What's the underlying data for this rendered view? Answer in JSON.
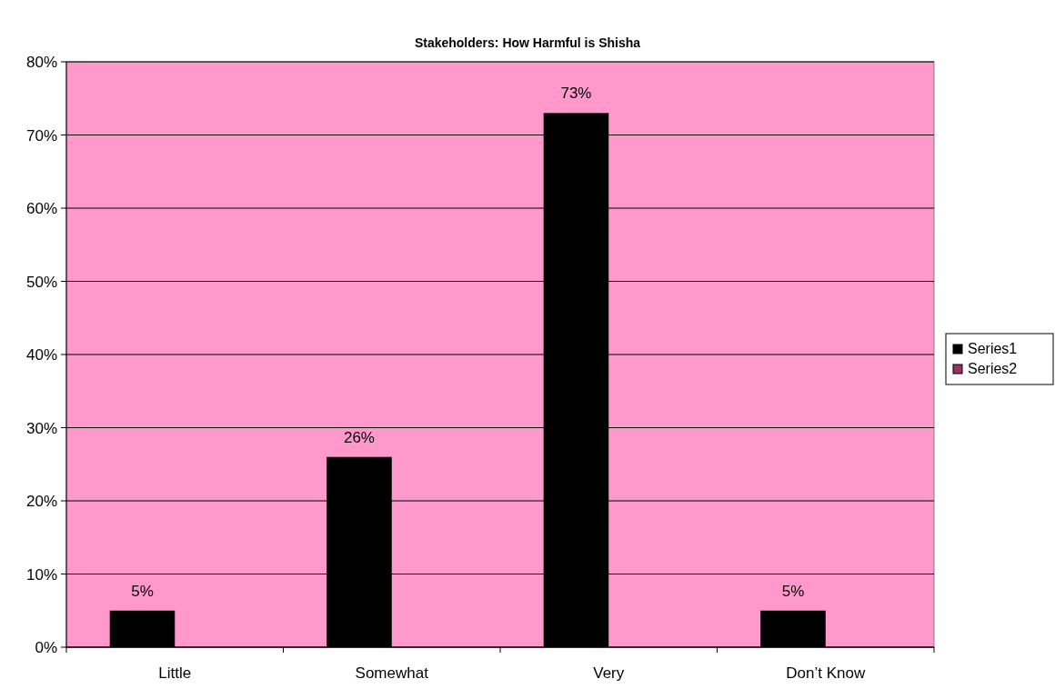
{
  "chart_data": {
    "type": "bar",
    "title": "Stakeholders: How Harmful is Shisha",
    "categories": [
      "Little",
      "Somewhat",
      "Very",
      "Don’t Know"
    ],
    "series": [
      {
        "name": "Series1",
        "color": "#000000",
        "values": [
          5,
          26,
          73,
          5
        ],
        "value_labels": [
          "5%",
          "26%",
          "73%",
          "5%"
        ]
      },
      {
        "name": "Series2",
        "color": "#993366",
        "values": [
          null,
          null,
          null,
          null
        ]
      }
    ],
    "ylim": [
      0,
      80
    ],
    "yticks": [
      {
        "value": 0,
        "label": "0%"
      },
      {
        "value": 10,
        "label": "10%"
      },
      {
        "value": 20,
        "label": "20%"
      },
      {
        "value": 30,
        "label": "30%"
      },
      {
        "value": 40,
        "label": "40%"
      },
      {
        "value": 50,
        "label": "50%"
      },
      {
        "value": 60,
        "label": "60%"
      },
      {
        "value": 70,
        "label": "70%"
      },
      {
        "value": 80,
        "label": "80%"
      }
    ],
    "grid": "y",
    "legend": "right"
  }
}
